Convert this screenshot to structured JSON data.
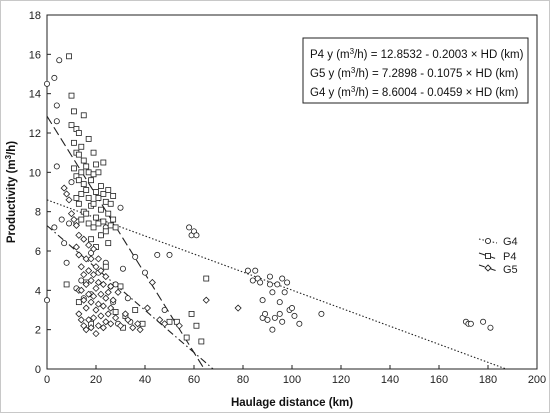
{
  "chart_data": {
    "type": "scatter",
    "xlabel": "Haulage distance (km)",
    "ylabel": "Productivity (m³/h)",
    "ylabel_base": "Productivity (m",
    "ylabel_sup": "3",
    "ylabel_tail": "/h)",
    "xlim": [
      0,
      200
    ],
    "ylim": [
      0,
      18
    ],
    "x_ticks": [
      0,
      20,
      40,
      60,
      80,
      100,
      120,
      140,
      160,
      180,
      200
    ],
    "y_ticks": [
      0,
      2,
      4,
      6,
      8,
      10,
      12,
      14,
      16,
      18
    ],
    "equations": [
      {
        "pre": "P4 y (m",
        "sup": "3",
        "post": "/h) = 12.8532 - 0.2003 × HD (km)"
      },
      {
        "pre": "G5 y (m",
        "sup": "3",
        "post": "/h) = 7.2898 - 0.1075 × HD (km)"
      },
      {
        "pre": "G4 y (m",
        "sup": "3",
        "post": "/h) = 8.6004 - 0.0459 × HD (km)"
      }
    ],
    "legend": [
      "G4",
      "P4",
      "G5"
    ],
    "legend_position": "right",
    "series": [
      {
        "name": "G4",
        "marker": "circle",
        "line": "dotted",
        "fit": {
          "intercept": 8.6004,
          "slope": -0.0459
        },
        "points": [
          [
            0,
            14.5
          ],
          [
            0,
            3.5
          ],
          [
            3,
            14.8
          ],
          [
            4,
            13.4
          ],
          [
            5,
            15.7
          ],
          [
            4,
            12.6
          ],
          [
            4,
            10.3
          ],
          [
            3,
            7.2
          ],
          [
            6,
            7.6
          ],
          [
            7,
            6.4
          ],
          [
            8,
            5.4
          ],
          [
            9,
            7.4
          ],
          [
            10,
            9.5
          ],
          [
            12,
            4.1
          ],
          [
            14,
            4.5
          ],
          [
            15,
            3.6
          ],
          [
            18,
            3.8
          ],
          [
            18,
            5.9
          ],
          [
            21,
            4.9
          ],
          [
            22,
            6.8
          ],
          [
            24,
            7.2
          ],
          [
            24,
            5.4
          ],
          [
            26,
            4.2
          ],
          [
            27,
            3.4
          ],
          [
            28,
            4.3
          ],
          [
            29,
            2.3
          ],
          [
            30,
            8.2
          ],
          [
            31,
            5.1
          ],
          [
            33,
            3.6
          ],
          [
            34,
            2.4
          ],
          [
            36,
            5.7
          ],
          [
            40,
            4.9
          ],
          [
            45,
            5.8
          ],
          [
            48,
            3.0
          ],
          [
            50,
            5.8
          ],
          [
            58,
            7.2
          ],
          [
            59,
            6.8
          ],
          [
            60,
            7.0
          ],
          [
            61,
            6.8
          ],
          [
            82,
            5.0
          ],
          [
            84,
            4.5
          ],
          [
            85,
            5.0
          ],
          [
            86,
            4.6
          ],
          [
            87,
            4.4
          ],
          [
            88,
            3.5
          ],
          [
            88,
            2.6
          ],
          [
            89,
            2.8
          ],
          [
            90,
            2.5
          ],
          [
            91,
            4.7
          ],
          [
            91,
            4.3
          ],
          [
            92,
            3.9
          ],
          [
            92,
            2.0
          ],
          [
            93,
            2.6
          ],
          [
            94,
            4.3
          ],
          [
            95,
            3.4
          ],
          [
            95,
            2.8
          ],
          [
            96,
            4.6
          ],
          [
            96,
            2.4
          ],
          [
            97,
            3.9
          ],
          [
            98,
            4.4
          ],
          [
            99,
            3.0
          ],
          [
            100,
            3.1
          ],
          [
            101,
            2.7
          ],
          [
            103,
            2.3
          ],
          [
            112,
            2.8
          ],
          [
            171,
            2.4
          ],
          [
            172,
            2.3
          ],
          [
            173,
            2.3
          ],
          [
            178,
            2.4
          ],
          [
            181,
            2.1
          ]
        ]
      },
      {
        "name": "P4",
        "marker": "square",
        "line": "dashed",
        "fit": {
          "intercept": 12.8532,
          "slope": -0.2003
        },
        "points": [
          [
            8,
            4.3
          ],
          [
            9,
            15.9
          ],
          [
            10,
            12.4
          ],
          [
            10,
            13.9
          ],
          [
            11,
            13.1
          ],
          [
            11,
            11.5
          ],
          [
            11,
            10.2
          ],
          [
            12,
            12.2
          ],
          [
            12,
            11.0
          ],
          [
            12,
            9.8
          ],
          [
            12,
            8.7
          ],
          [
            12,
            7.5
          ],
          [
            13,
            12.0
          ],
          [
            13,
            10.9
          ],
          [
            13,
            9.6
          ],
          [
            13,
            8.4
          ],
          [
            13,
            3.4
          ],
          [
            14,
            11.3
          ],
          [
            14,
            10.0
          ],
          [
            14,
            8.9
          ],
          [
            14,
            7.6
          ],
          [
            15,
            12.9
          ],
          [
            15,
            10.6
          ],
          [
            15,
            9.4
          ],
          [
            15,
            8.0
          ],
          [
            16,
            10.3
          ],
          [
            16,
            9.1
          ],
          [
            16,
            7.9
          ],
          [
            16,
            4.4
          ],
          [
            17,
            11.7
          ],
          [
            17,
            10.0
          ],
          [
            17,
            8.7
          ],
          [
            17,
            7.4
          ],
          [
            18,
            9.6
          ],
          [
            18,
            8.3
          ],
          [
            18,
            6.6
          ],
          [
            18,
            2.3
          ],
          [
            19,
            11.0
          ],
          [
            19,
            9.9
          ],
          [
            19,
            8.4
          ],
          [
            19,
            7.2
          ],
          [
            20,
            10.4
          ],
          [
            20,
            9.0
          ],
          [
            20,
            7.7
          ],
          [
            20,
            6.2
          ],
          [
            21,
            10.0
          ],
          [
            21,
            8.7
          ],
          [
            21,
            7.4
          ],
          [
            22,
            9.3
          ],
          [
            22,
            8.1
          ],
          [
            22,
            6.8
          ],
          [
            23,
            10.5
          ],
          [
            23,
            8.9
          ],
          [
            23,
            7.5
          ],
          [
            24,
            8.5
          ],
          [
            24,
            7.0
          ],
          [
            24,
            5.2
          ],
          [
            25,
            9.1
          ],
          [
            25,
            7.9
          ],
          [
            25,
            6.4
          ],
          [
            26,
            8.4
          ],
          [
            26,
            7.3
          ],
          [
            27,
            8.8
          ],
          [
            27,
            7.6
          ],
          [
            28,
            7.2
          ],
          [
            28,
            2.9
          ],
          [
            30,
            4.2
          ],
          [
            31,
            2.1
          ],
          [
            32,
            2.7
          ],
          [
            36,
            3.0
          ],
          [
            39,
            2.3
          ],
          [
            50,
            2.4
          ],
          [
            53,
            2.4
          ],
          [
            57,
            1.6
          ],
          [
            59,
            2.8
          ],
          [
            61,
            2.2
          ],
          [
            63,
            1.4
          ],
          [
            65,
            4.6
          ]
        ]
      },
      {
        "name": "G5",
        "marker": "diamond",
        "line": "dash-dot",
        "fit": {
          "intercept": 7.2898,
          "slope": -0.1075
        },
        "points": [
          [
            7,
            9.2
          ],
          [
            8,
            8.9
          ],
          [
            9,
            8.6
          ],
          [
            10,
            7.9
          ],
          [
            11,
            7.6
          ],
          [
            12,
            7.3
          ],
          [
            12,
            6.2
          ],
          [
            13,
            6.8
          ],
          [
            13,
            5.8
          ],
          [
            13,
            4.0
          ],
          [
            13,
            2.8
          ],
          [
            14,
            5.2
          ],
          [
            14,
            4.0
          ],
          [
            14,
            2.5
          ],
          [
            15,
            6.6
          ],
          [
            15,
            4.8
          ],
          [
            15,
            3.5
          ],
          [
            15,
            2.2
          ],
          [
            16,
            5.6
          ],
          [
            16,
            4.3
          ],
          [
            16,
            3.1
          ],
          [
            16,
            2.0
          ],
          [
            17,
            6.3
          ],
          [
            17,
            5.0
          ],
          [
            17,
            3.8
          ],
          [
            17,
            2.5
          ],
          [
            18,
            5.6
          ],
          [
            18,
            4.5
          ],
          [
            18,
            3.4
          ],
          [
            18,
            2.1
          ],
          [
            19,
            6.1
          ],
          [
            19,
            4.8
          ],
          [
            19,
            3.7
          ],
          [
            19,
            2.6
          ],
          [
            20,
            5.2
          ],
          [
            20,
            4.1
          ],
          [
            20,
            3.0
          ],
          [
            20,
            1.8
          ],
          [
            21,
            5.6
          ],
          [
            21,
            4.4
          ],
          [
            21,
            3.3
          ],
          [
            21,
            2.2
          ],
          [
            22,
            5.0
          ],
          [
            22,
            3.8
          ],
          [
            22,
            2.7
          ],
          [
            23,
            4.3
          ],
          [
            23,
            3.2
          ],
          [
            23,
            2.1
          ],
          [
            24,
            4.7
          ],
          [
            24,
            3.6
          ],
          [
            24,
            2.4
          ],
          [
            25,
            3.9
          ],
          [
            25,
            2.8
          ],
          [
            26,
            4.2
          ],
          [
            26,
            3.1
          ],
          [
            26,
            2.3
          ],
          [
            27,
            3.5
          ],
          [
            28,
            2.6
          ],
          [
            29,
            3.9
          ],
          [
            30,
            2.2
          ],
          [
            32,
            2.8
          ],
          [
            33,
            2.5
          ],
          [
            35,
            2.1
          ],
          [
            37,
            2.3
          ],
          [
            38,
            2.0
          ],
          [
            41,
            3.1
          ],
          [
            43,
            4.4
          ],
          [
            46,
            2.5
          ],
          [
            48,
            2.3
          ],
          [
            54,
            2.2
          ],
          [
            65,
            3.5
          ],
          [
            78,
            3.1
          ]
        ]
      }
    ]
  }
}
